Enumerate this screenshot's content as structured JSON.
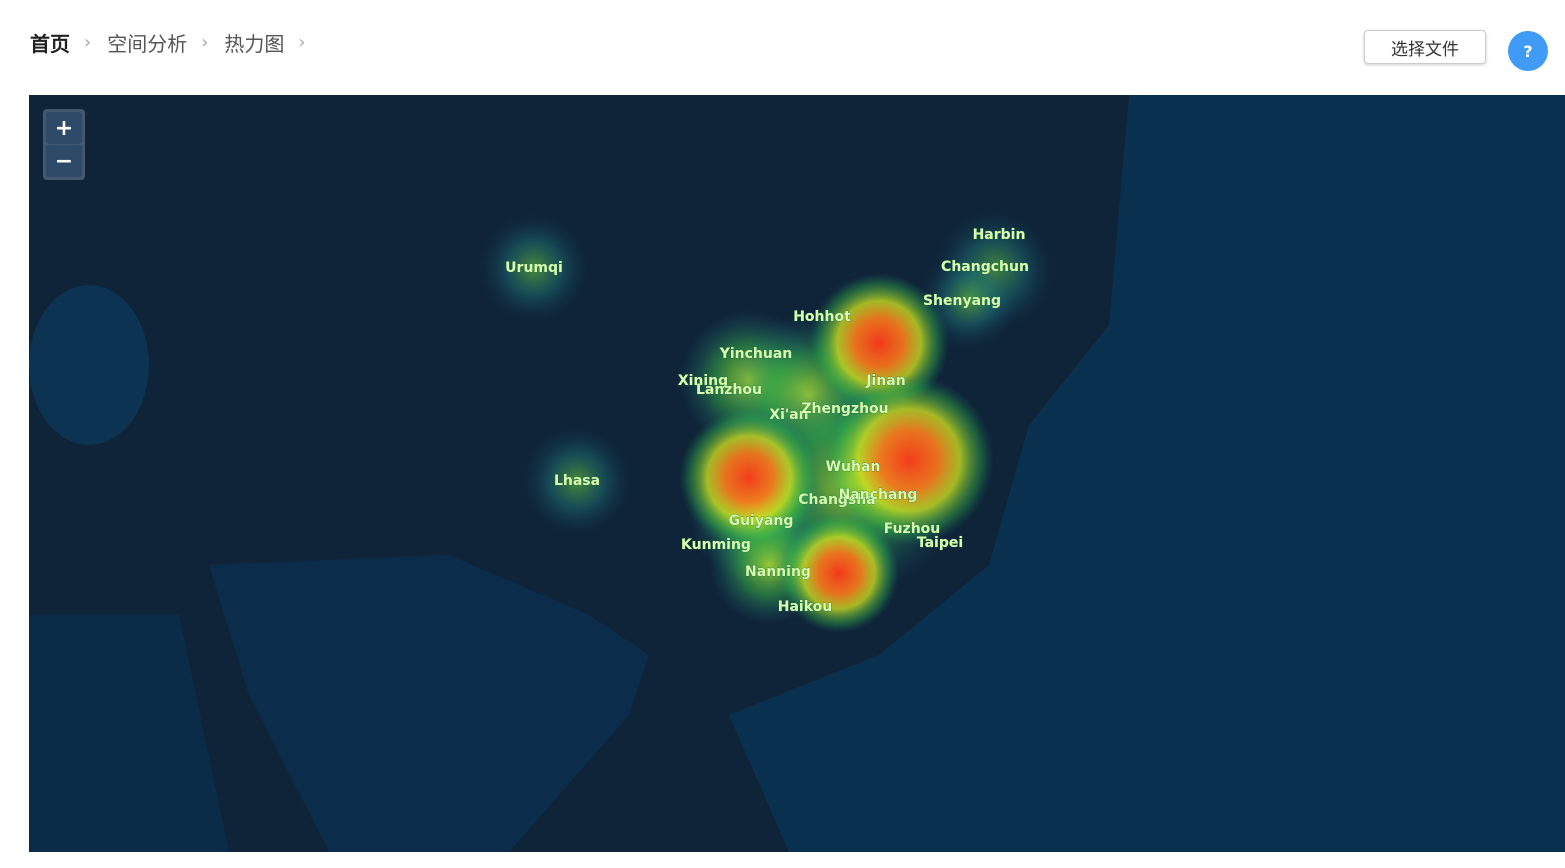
{
  "breadcrumb": [
    "首页",
    "空间分析",
    "热力图"
  ],
  "button": "选择文件",
  "help": "?",
  "zoom": {
    "in": "+",
    "out": "−"
  },
  "cities": [
    "Urumqi",
    "Lhasa",
    "Harbin",
    "Changchun",
    "Shenyang",
    "Hohhot",
    "Yinchuan",
    "Xining",
    "Lanzhou",
    "Xi'an",
    "Zhengzhou",
    "Jinan",
    "Wuhan",
    "Changsha",
    "Nanchang",
    "Guiyang",
    "Kunming",
    "Fuzhou",
    "Taipei",
    "Nanning",
    "Haikou"
  ]
}
